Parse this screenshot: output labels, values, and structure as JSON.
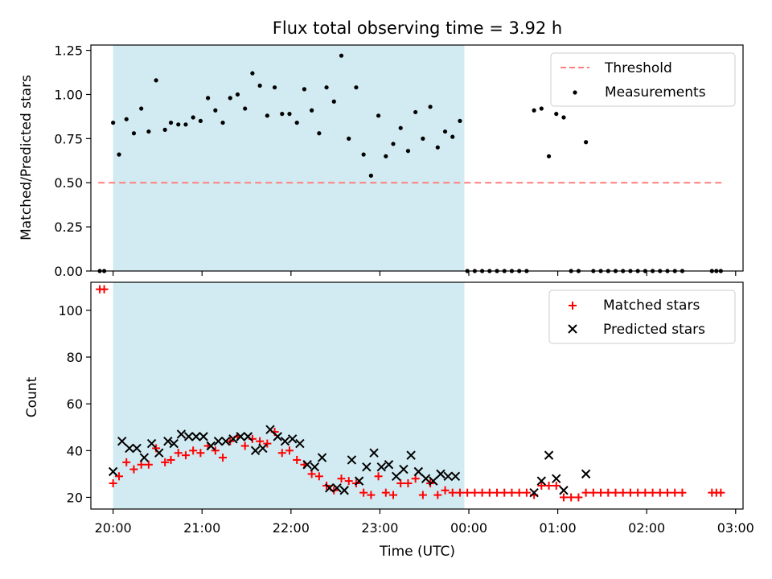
{
  "chart_data": [
    {
      "type": "scatter",
      "title": "Flux total observing time = 3.92 h",
      "xlabel": "",
      "ylabel": "Matched/Predicted stars",
      "ylim": [
        0,
        1.28
      ],
      "xlim": [
        "19:45",
        "03:05"
      ],
      "yticks": [
        0.0,
        0.25,
        0.5,
        0.75,
        1.0,
        1.25
      ],
      "yticklabels": [
        "0.00",
        "0.25",
        "0.50",
        "0.75",
        "1.00",
        "1.25"
      ],
      "observing_window": {
        "start": "20:00",
        "end": "23:57",
        "color": "#add8e6"
      },
      "legend": {
        "position": "top-right",
        "entries": [
          {
            "label": "Threshold",
            "style": "dashed-line",
            "color": "#ff7f7f"
          },
          {
            "label": "Measurements",
            "style": "dot",
            "color": "#000000"
          }
        ]
      },
      "series": [
        {
          "name": "Threshold",
          "kind": "line",
          "color": "#ff7f7f",
          "x": [
            "19:50",
            "02:53"
          ],
          "y": [
            0.5,
            0.5
          ]
        },
        {
          "name": "Measurements",
          "kind": "points",
          "color": "#000000",
          "points": [
            [
              "19:51",
              0.0
            ],
            [
              "19:54",
              0.0
            ],
            [
              "20:00",
              0.84
            ],
            [
              "20:04",
              0.66
            ],
            [
              "20:09",
              0.86
            ],
            [
              "20:14",
              0.78
            ],
            [
              "20:19",
              0.92
            ],
            [
              "20:24",
              0.79
            ],
            [
              "20:29",
              1.08
            ],
            [
              "20:35",
              0.8
            ],
            [
              "20:39",
              0.84
            ],
            [
              "20:44",
              0.83
            ],
            [
              "20:49",
              0.83
            ],
            [
              "20:54",
              0.87
            ],
            [
              "20:59",
              0.85
            ],
            [
              "21:04",
              0.98
            ],
            [
              "21:09",
              0.91
            ],
            [
              "21:14",
              0.84
            ],
            [
              "21:19",
              0.98
            ],
            [
              "21:24",
              1.0
            ],
            [
              "21:29",
              0.92
            ],
            [
              "21:34",
              1.12
            ],
            [
              "21:39",
              1.05
            ],
            [
              "21:44",
              0.88
            ],
            [
              "21:49",
              1.04
            ],
            [
              "21:54",
              0.89
            ],
            [
              "21:59",
              0.89
            ],
            [
              "22:04",
              0.84
            ],
            [
              "22:09",
              1.03
            ],
            [
              "22:14",
              0.91
            ],
            [
              "22:19",
              0.78
            ],
            [
              "22:24",
              1.04
            ],
            [
              "22:29",
              0.96
            ],
            [
              "22:34",
              1.22
            ],
            [
              "22:39",
              0.75
            ],
            [
              "22:44",
              1.04
            ],
            [
              "22:49",
              0.66
            ],
            [
              "22:54",
              0.54
            ],
            [
              "22:59",
              0.88
            ],
            [
              "23:04",
              0.65
            ],
            [
              "23:09",
              0.72
            ],
            [
              "23:14",
              0.81
            ],
            [
              "23:19",
              0.68
            ],
            [
              "23:24",
              0.9
            ],
            [
              "23:29",
              0.75
            ],
            [
              "23:34",
              0.93
            ],
            [
              "23:39",
              0.7
            ],
            [
              "23:44",
              0.79
            ],
            [
              "23:49",
              0.76
            ],
            [
              "23:54",
              0.85
            ],
            [
              "23:59",
              0.0
            ],
            [
              "00:04",
              0.0
            ],
            [
              "00:09",
              0.0
            ],
            [
              "00:14",
              0.0
            ],
            [
              "00:19",
              0.0
            ],
            [
              "00:24",
              0.0
            ],
            [
              "00:29",
              0.0
            ],
            [
              "00:34",
              0.0
            ],
            [
              "00:39",
              0.0
            ],
            [
              "00:44",
              0.91
            ],
            [
              "00:49",
              0.92
            ],
            [
              "00:54",
              0.65
            ],
            [
              "00:59",
              0.89
            ],
            [
              "01:04",
              0.87
            ],
            [
              "01:09",
              0.0
            ],
            [
              "01:14",
              0.0
            ],
            [
              "01:19",
              0.73
            ],
            [
              "01:24",
              0.0
            ],
            [
              "01:29",
              0.0
            ],
            [
              "01:34",
              0.0
            ],
            [
              "01:39",
              0.0
            ],
            [
              "01:44",
              0.0
            ],
            [
              "01:49",
              0.0
            ],
            [
              "01:54",
              0.0
            ],
            [
              "01:59",
              0.0
            ],
            [
              "02:04",
              0.0
            ],
            [
              "02:09",
              0.0
            ],
            [
              "02:14",
              0.0
            ],
            [
              "02:19",
              0.0
            ],
            [
              "02:24",
              0.0
            ],
            [
              "02:44",
              0.0
            ],
            [
              "02:47",
              0.0
            ],
            [
              "02:50",
              0.0
            ]
          ]
        }
      ]
    },
    {
      "type": "scatter",
      "title": "",
      "xlabel": "Time (UTC)",
      "ylabel": "Count",
      "ylim": [
        15,
        112
      ],
      "xlim": [
        "19:45",
        "03:05"
      ],
      "yticks": [
        20,
        40,
        60,
        80,
        100
      ],
      "yticklabels": [
        "20",
        "40",
        "60",
        "80",
        "100"
      ],
      "xticks": [
        "20:00",
        "21:00",
        "22:00",
        "23:00",
        "00:00",
        "01:00",
        "02:00",
        "03:00"
      ],
      "xticklabels": [
        "20:00",
        "21:00",
        "22:00",
        "23:00",
        "00:00",
        "01:00",
        "02:00",
        "03:00"
      ],
      "observing_window": {
        "start": "20:00",
        "end": "23:57",
        "color": "#add8e6"
      },
      "legend": {
        "position": "top-right",
        "entries": [
          {
            "label": "Matched stars",
            "style": "plus",
            "color": "#ff0000"
          },
          {
            "label": "Predicted stars",
            "style": "x",
            "color": "#000000"
          }
        ]
      },
      "series": [
        {
          "name": "Matched stars",
          "kind": "points",
          "marker": "plus",
          "color": "#ff0000",
          "points": [
            [
              "19:51",
              109
            ],
            [
              "19:54",
              109
            ],
            [
              "20:00",
              26
            ],
            [
              "20:04",
              29
            ],
            [
              "20:09",
              35
            ],
            [
              "20:14",
              32
            ],
            [
              "20:19",
              34
            ],
            [
              "20:24",
              34
            ],
            [
              "20:29",
              41
            ],
            [
              "20:35",
              35
            ],
            [
              "20:39",
              36
            ],
            [
              "20:44",
              39
            ],
            [
              "20:49",
              38
            ],
            [
              "20:54",
              40
            ],
            [
              "20:59",
              39
            ],
            [
              "21:04",
              42
            ],
            [
              "21:09",
              40
            ],
            [
              "21:14",
              37
            ],
            [
              "21:19",
              44
            ],
            [
              "21:24",
              46
            ],
            [
              "21:29",
              42
            ],
            [
              "21:34",
              45
            ],
            [
              "21:39",
              44
            ],
            [
              "21:44",
              43
            ],
            [
              "21:49",
              48
            ],
            [
              "21:54",
              39
            ],
            [
              "21:59",
              40
            ],
            [
              "22:04",
              36
            ],
            [
              "22:09",
              34
            ],
            [
              "22:14",
              30
            ],
            [
              "22:19",
              29
            ],
            [
              "22:24",
              25
            ],
            [
              "22:29",
              23
            ],
            [
              "22:34",
              28
            ],
            [
              "22:39",
              27
            ],
            [
              "22:44",
              26
            ],
            [
              "22:49",
              22
            ],
            [
              "22:54",
              21
            ],
            [
              "22:59",
              29
            ],
            [
              "23:04",
              22
            ],
            [
              "23:09",
              21
            ],
            [
              "23:14",
              26
            ],
            [
              "23:19",
              26
            ],
            [
              "23:24",
              28
            ],
            [
              "23:29",
              21
            ],
            [
              "23:34",
              26
            ],
            [
              "23:39",
              21
            ],
            [
              "23:44",
              23
            ],
            [
              "23:49",
              22
            ],
            [
              "23:54",
              22
            ],
            [
              "23:59",
              22
            ],
            [
              "00:04",
              22
            ],
            [
              "00:09",
              22
            ],
            [
              "00:14",
              22
            ],
            [
              "00:19",
              22
            ],
            [
              "00:24",
              22
            ],
            [
              "00:29",
              22
            ],
            [
              "00:34",
              22
            ],
            [
              "00:39",
              22
            ],
            [
              "00:44",
              21
            ],
            [
              "00:49",
              25
            ],
            [
              "00:54",
              25
            ],
            [
              "00:59",
              25
            ],
            [
              "01:04",
              20
            ],
            [
              "01:09",
              20
            ],
            [
              "01:14",
              20
            ],
            [
              "01:19",
              22
            ],
            [
              "01:24",
              22
            ],
            [
              "01:29",
              22
            ],
            [
              "01:34",
              22
            ],
            [
              "01:39",
              22
            ],
            [
              "01:44",
              22
            ],
            [
              "01:49",
              22
            ],
            [
              "01:54",
              22
            ],
            [
              "01:59",
              22
            ],
            [
              "02:04",
              22
            ],
            [
              "02:09",
              22
            ],
            [
              "02:14",
              22
            ],
            [
              "02:19",
              22
            ],
            [
              "02:24",
              22
            ],
            [
              "02:44",
              22
            ],
            [
              "02:47",
              22
            ],
            [
              "02:50",
              22
            ]
          ]
        },
        {
          "name": "Predicted stars",
          "kind": "points",
          "marker": "x",
          "color": "#000000",
          "points": [
            [
              "20:00",
              31
            ],
            [
              "20:06",
              44
            ],
            [
              "20:11",
              41
            ],
            [
              "20:16",
              41
            ],
            [
              "20:21",
              37
            ],
            [
              "20:26",
              43
            ],
            [
              "20:31",
              39
            ],
            [
              "20:37",
              44
            ],
            [
              "20:41",
              43
            ],
            [
              "20:46",
              47
            ],
            [
              "20:51",
              46
            ],
            [
              "20:56",
              46
            ],
            [
              "21:01",
              46
            ],
            [
              "21:06",
              42
            ],
            [
              "21:11",
              44
            ],
            [
              "21:16",
              44
            ],
            [
              "21:21",
              45
            ],
            [
              "21:26",
              46
            ],
            [
              "21:31",
              46
            ],
            [
              "21:36",
              40
            ],
            [
              "21:41",
              41
            ],
            [
              "21:46",
              49
            ],
            [
              "21:51",
              46
            ],
            [
              "21:56",
              44
            ],
            [
              "22:01",
              45
            ],
            [
              "22:06",
              43
            ],
            [
              "22:11",
              34
            ],
            [
              "22:16",
              33
            ],
            [
              "22:21",
              37
            ],
            [
              "22:26",
              24
            ],
            [
              "22:31",
              24
            ],
            [
              "22:36",
              23
            ],
            [
              "22:41",
              36
            ],
            [
              "22:46",
              27
            ],
            [
              "22:51",
              33
            ],
            [
              "22:56",
              39
            ],
            [
              "23:01",
              33
            ],
            [
              "23:06",
              34
            ],
            [
              "23:11",
              29
            ],
            [
              "23:16",
              32
            ],
            [
              "23:21",
              38
            ],
            [
              "23:26",
              31
            ],
            [
              "23:31",
              28
            ],
            [
              "23:36",
              27
            ],
            [
              "23:41",
              30
            ],
            [
              "23:46",
              29
            ],
            [
              "23:51",
              29
            ],
            [
              "00:44",
              22
            ],
            [
              "00:49",
              27
            ],
            [
              "00:54",
              38
            ],
            [
              "00:59",
              28
            ],
            [
              "01:04",
              23
            ],
            [
              "01:19",
              30
            ]
          ]
        }
      ]
    }
  ]
}
